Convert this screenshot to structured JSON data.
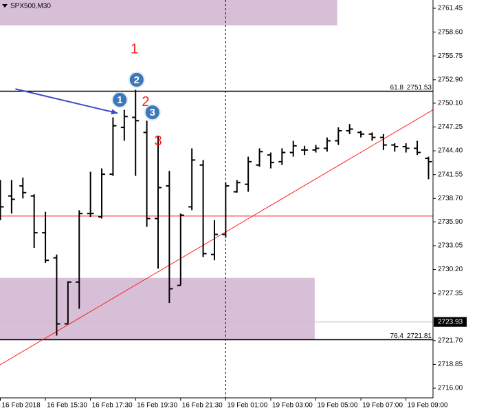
{
  "chart_data": {
    "type": "ohlc",
    "title": "SPX500,M30",
    "categories": [
      "16 Feb 2018",
      null,
      null,
      null,
      "16 Feb 15:30",
      null,
      null,
      null,
      "16 Feb 17:30",
      null,
      null,
      null,
      "16 Feb 19:30",
      null,
      null,
      null,
      "16 Feb 21:30",
      null,
      null,
      null,
      "19 Feb 01:00",
      null,
      null,
      null,
      "19 Feb 03:00",
      null,
      null,
      null,
      "19 Feb 05:00",
      null,
      null,
      null,
      "19 Feb 07:00",
      null,
      null,
      null,
      "19 Feb 09:00",
      null,
      null
    ],
    "open": [
      2739.1,
      2739.0,
      2740.2,
      2739.0,
      2734.6,
      2731.6,
      2723.7,
      2728.7,
      2736.9,
      2736.5,
      2741.6,
      2747.2,
      2748.4,
      2746.6,
      2736.3,
      2740.2,
      2728.3,
      2737.7,
      2742.7,
      2732.0,
      2734.4,
      2739.5,
      2740.4,
      2742.7,
      2743.9,
      2743.1,
      2744.2,
      2744.5,
      2744.5,
      2744.7,
      2745.6,
      2746.8,
      2746.6,
      2746.4,
      2746.0,
      2745.1,
      2744.9,
      2744.7,
      2743.5
    ],
    "high": [
      2740.9,
      2740.9,
      2741.2,
      2739.2,
      2737.1,
      2732.0,
      2728.8,
      2737.3,
      2741.9,
      2742.3,
      2748.4,
      2749.3,
      2751.7,
      2748.0,
      2746.2,
      2742.0,
      2736.9,
      2744.7,
      2743.3,
      2736.1,
      2740.6,
      2740.9,
      2743.7,
      2744.7,
      2744.2,
      2744.7,
      2745.6,
      2745.0,
      2745.1,
      2746.0,
      2747.2,
      2747.6,
      2746.8,
      2746.6,
      2746.4,
      2745.3,
      2745.3,
      2745.6,
      2743.7
    ],
    "low": [
      2736.1,
      2736.9,
      2738.7,
      2732.8,
      2731.0,
      2722.3,
      2723.7,
      2725.5,
      2736.5,
      2736.3,
      2741.4,
      2745.6,
      2741.4,
      2735.3,
      2730.3,
      2726.2,
      2728.3,
      2737.3,
      2731.7,
      2731.3,
      2734.0,
      2739.4,
      2739.5,
      2742.5,
      2742.3,
      2742.7,
      2743.7,
      2743.9,
      2744.2,
      2744.3,
      2745.1,
      2746.4,
      2746.0,
      2745.6,
      2744.5,
      2744.3,
      2744.2,
      2743.9,
      2741.0
    ],
    "close": [
      2737.7,
      2738.6,
      2739.4,
      2734.6,
      2731.3,
      2723.7,
      2728.7,
      2736.9,
      2736.9,
      2741.6,
      2747.4,
      2748.5,
      2748.0,
      2736.3,
      2740.0,
      2727.9,
      2736.7,
      2743.3,
      2732.1,
      2734.4,
      2740.2,
      2740.6,
      2743.1,
      2744.3,
      2743.0,
      2744.2,
      2745.0,
      2744.5,
      2744.7,
      2745.6,
      2746.8,
      2747.0,
      2746.4,
      2746.0,
      2745.1,
      2744.9,
      2744.7,
      2744.2,
      2743.1
    ],
    "color": "#000000",
    "ylim": [
      2714.85,
      2762.44
    ],
    "xlim": [
      -0.03,
      38.4
    ],
    "yticks": [
      2761.45,
      {
        "value": 2758.6,
        "label": "2758.60"
      },
      2755.75,
      {
        "value": 2752.9,
        "label": "2752.90"
      },
      {
        "value": 2750.1,
        "label": "2750.10"
      },
      2747.25,
      {
        "value": 2744.4,
        "label": "2744.40"
      },
      2741.55,
      {
        "value": 2738.7,
        "label": "2738.70"
      },
      {
        "value": 2735.9,
        "label": "2735.90"
      },
      2733.05,
      {
        "value": 2730.2,
        "label": "2730.20"
      },
      2727.35,
      {
        "value": 2721.7,
        "label": "2721.70"
      },
      2718.85,
      {
        "value": 2716,
        "label": "2716.00"
      }
    ],
    "bid": 2723.93,
    "hlines": [
      {
        "value": 2751.53,
        "level": 61.8,
        "color": "#000000"
      },
      {
        "value": 2721.81,
        "level": 76.4,
        "color": "#000000"
      },
      {
        "value": 2736.6,
        "color": "#ff2020"
      }
    ],
    "zones": [
      {
        "top": 2762.44,
        "bottom": 2759.4,
        "x_end": 29.9,
        "color": "#d8bfd8"
      },
      {
        "top": 2729.2,
        "bottom": 2721.8,
        "x_end": 27.9,
        "color": "#d8bfd8"
      }
    ],
    "trendline": {
      "x": [
        -0.03,
        38.4
      ],
      "y": [
        2718.8,
        2749.3
      ],
      "color": "#ff2020"
    },
    "arrow": {
      "x": [
        1.34,
        10.4
      ],
      "y": [
        2751.8,
        2748.9
      ],
      "color": "#3a4cc8"
    },
    "separator": 20,
    "annotations": [
      {
        "text": "1",
        "x": 11.9,
        "y": 2756.5,
        "style": "red"
      },
      {
        "text": "2",
        "x": 12.9,
        "y": 2750.2,
        "style": "red"
      },
      {
        "text": "3",
        "x": 14.0,
        "y": 2745.5,
        "style": "red"
      },
      {
        "text": "1",
        "x": 10.6,
        "y": 2750.5,
        "style": "circle"
      },
      {
        "text": "2",
        "x": 12.1,
        "y": 2752.9,
        "style": "circle"
      },
      {
        "text": "3",
        "x": 13.5,
        "y": 2749.0,
        "style": "circle"
      }
    ]
  }
}
